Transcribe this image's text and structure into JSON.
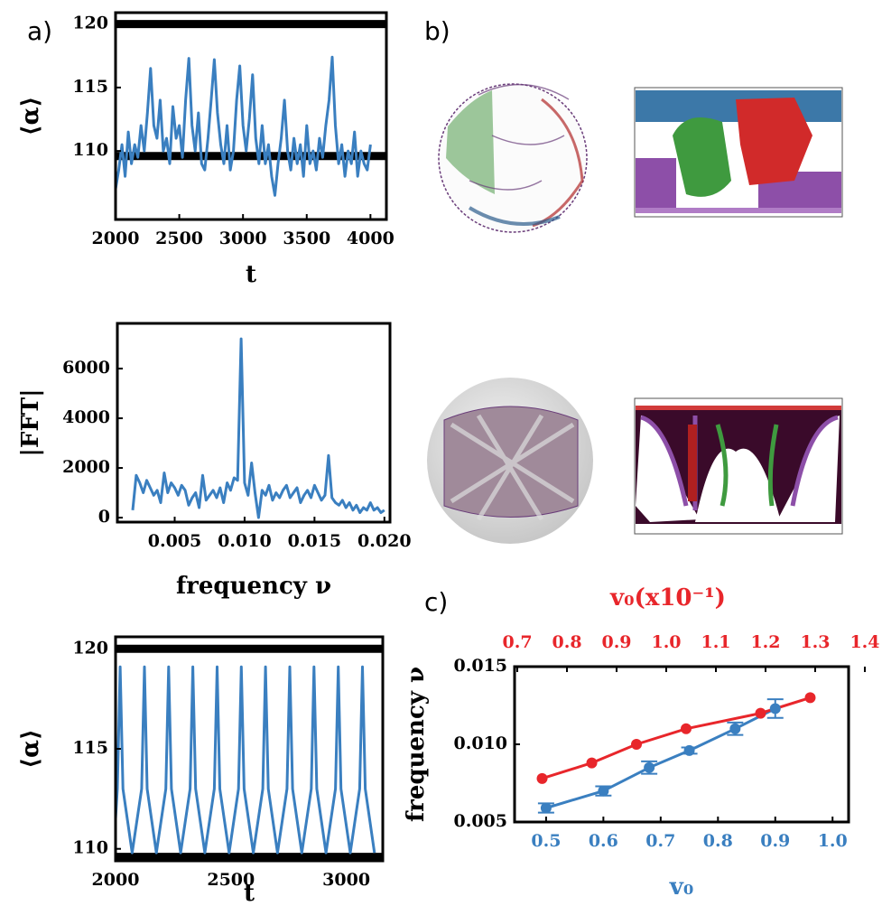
{
  "panel_b": {
    "label": "b)"
  },
  "chart_data": [
    {
      "type": "line",
      "panel_label": "a)",
      "xlabel": "t",
      "ylabel": "⟨α⟩",
      "xlim": [
        2000,
        4125
      ],
      "ylim": [
        104.6,
        120.9
      ],
      "xticks": [
        2000,
        2500,
        3000,
        3500,
        4000
      ],
      "yticks": [
        110,
        115,
        120
      ],
      "hlines": {
        "values": [
          120,
          109.6
        ],
        "color": "#000000"
      },
      "series": [
        {
          "color": "#3a7fc0",
          "x": [
            2000,
            2025,
            2050,
            2075,
            2100,
            2125,
            2150,
            2175,
            2200,
            2225,
            2250,
            2275,
            2300,
            2325,
            2350,
            2375,
            2400,
            2425,
            2450,
            2475,
            2500,
            2525,
            2550,
            2575,
            2600,
            2625,
            2650,
            2675,
            2700,
            2725,
            2750,
            2775,
            2800,
            2825,
            2850,
            2875,
            2900,
            2925,
            2950,
            2975,
            3000,
            3025,
            3050,
            3075,
            3100,
            3125,
            3150,
            3175,
            3200,
            3225,
            3250,
            3275,
            3300,
            3325,
            3350,
            3375,
            3400,
            3425,
            3450,
            3475,
            3500,
            3525,
            3550,
            3575,
            3600,
            3625,
            3650,
            3675,
            3700,
            3725,
            3750,
            3775,
            3800,
            3825,
            3850,
            3875,
            3900,
            3925,
            3950,
            3975,
            4000
          ],
          "values": [
            107,
            108.5,
            110.5,
            108,
            111.5,
            109,
            110.5,
            109.5,
            112,
            110,
            113,
            116.5,
            112,
            111,
            114,
            110,
            111,
            109,
            113.5,
            111,
            112,
            109.5,
            114,
            117.3,
            112,
            110,
            113,
            109,
            108.5,
            111,
            114,
            117.2,
            113,
            110.5,
            109,
            112,
            108.5,
            110,
            114,
            116.7,
            112,
            110,
            112.5,
            116,
            111,
            109,
            112,
            109,
            110.5,
            108,
            106.5,
            109,
            111,
            114,
            110,
            108.5,
            111,
            109,
            110.5,
            108,
            112,
            109,
            110,
            108.5,
            111,
            109.5,
            112,
            114,
            117.4,
            112,
            109,
            110.5,
            108,
            110,
            109,
            111.5,
            108,
            110,
            109,
            108.5,
            110.5
          ]
        }
      ]
    },
    {
      "type": "line",
      "xlabel": "frequency ν",
      "ylabel": "|FFT|",
      "xlim": [
        0.0009,
        0.0204
      ],
      "ylim": [
        -180,
        7820
      ],
      "xticks": [
        {
          "value": 0.005,
          "label": "0.005"
        },
        {
          "value": 0.01,
          "label": "0.010"
        },
        {
          "value": 0.015,
          "label": "0.015"
        },
        {
          "value": 0.02,
          "label": "0.020"
        }
      ],
      "yticks": [
        0,
        2000,
        4000,
        6000
      ],
      "series": [
        {
          "color": "#3a7fc0",
          "x": [
            0.002,
            0.00225,
            0.0025,
            0.00275,
            0.003,
            0.00325,
            0.0035,
            0.00375,
            0.004,
            0.00425,
            0.0045,
            0.00475,
            0.005,
            0.00525,
            0.0055,
            0.00575,
            0.006,
            0.00625,
            0.0065,
            0.00675,
            0.007,
            0.00725,
            0.0075,
            0.00775,
            0.008,
            0.00825,
            0.0085,
            0.00875,
            0.009,
            0.00925,
            0.0095,
            0.00975,
            0.01,
            0.01025,
            0.0105,
            0.01075,
            0.011,
            0.01125,
            0.0115,
            0.01175,
            0.012,
            0.01225,
            0.0125,
            0.01275,
            0.013,
            0.01325,
            0.0135,
            0.01375,
            0.014,
            0.01425,
            0.0145,
            0.01475,
            0.015,
            0.01525,
            0.0155,
            0.01575,
            0.016,
            0.01625,
            0.0165,
            0.01675,
            0.017,
            0.01725,
            0.0175,
            0.01775,
            0.018,
            0.01825,
            0.0185,
            0.01875,
            0.019,
            0.01925,
            0.0195,
            0.01975,
            0.02
          ],
          "values": [
            300,
            1700,
            1400,
            1000,
            1500,
            1200,
            900,
            1100,
            600,
            1800,
            1000,
            1400,
            1200,
            900,
            1300,
            1100,
            500,
            800,
            1000,
            400,
            1700,
            700,
            900,
            1100,
            800,
            1200,
            600,
            1400,
            1100,
            1600,
            1500,
            7200,
            1400,
            900,
            2200,
            1000,
            0,
            1100,
            900,
            1300,
            700,
            1000,
            800,
            1100,
            1300,
            800,
            1000,
            1200,
            600,
            900,
            1100,
            800,
            1300,
            1000,
            700,
            900,
            2500,
            800,
            600,
            500,
            700,
            400,
            600,
            300,
            500,
            200,
            400,
            300,
            600,
            300,
            400,
            200,
            300
          ]
        }
      ]
    },
    {
      "type": "line",
      "xlabel": "t",
      "ylabel": "⟨α⟩",
      "xlim": [
        2000,
        3158
      ],
      "ylim": [
        109.4,
        120.6
      ],
      "xticks": [
        2000,
        2500,
        3000
      ],
      "yticks": [
        110,
        115,
        120
      ],
      "hlines": {
        "values": [
          120,
          109.6
        ],
        "color": "#000000"
      },
      "series": [
        {
          "color": "#3a7fc0",
          "x": [
            2000,
            2008,
            2020,
            2032,
            2072,
            2113,
            2125,
            2137,
            2177,
            2218,
            2230,
            2242,
            2282,
            2323,
            2335,
            2347,
            2387,
            2428,
            2440,
            2452,
            2492,
            2533,
            2545,
            2557,
            2597,
            2638,
            2650,
            2662,
            2702,
            2743,
            2755,
            2767,
            2807,
            2848,
            2860,
            2872,
            2912,
            2953,
            2965,
            2977,
            3017,
            3058,
            3070,
            3082,
            3122
          ],
          "values": [
            111.5,
            113,
            119.1,
            113,
            109.8,
            113,
            119.1,
            113,
            109.8,
            113,
            119.1,
            113,
            109.8,
            113,
            119.1,
            113,
            109.8,
            113,
            119.1,
            113,
            109.8,
            113,
            119.1,
            113,
            109.8,
            113,
            119.1,
            113,
            109.8,
            113,
            119.1,
            113,
            109.8,
            113,
            119.1,
            113,
            109.8,
            113,
            119.1,
            113,
            109.8,
            113,
            119.1,
            113,
            109.8
          ]
        }
      ]
    },
    {
      "type": "errorline",
      "panel_label": "c)",
      "xlabel": "v₀",
      "x2label": "v₀(x10⁻¹)",
      "ylabel": "frequency ν",
      "xaxis_color": "#3a7fc0",
      "x2axis_color": "#e8262b",
      "xlim": [
        0.445,
        1.028
      ],
      "x2lim": [
        0.6945,
        1.3673
      ],
      "ylim": [
        0.005,
        0.015
      ],
      "xticks": [
        0.5,
        0.6,
        0.7,
        0.8,
        0.9,
        {
          "value": 1.0,
          "label": "1.0"
        }
      ],
      "x2ticks": [
        0.7,
        0.8,
        0.9,
        {
          "value": 1.0,
          "label": "1.0"
        },
        1.1,
        1.2,
        1.3,
        1.4
      ],
      "yticks": [
        {
          "value": 0.005,
          "label": "0.005"
        },
        {
          "value": 0.01,
          "label": "0.010"
        },
        {
          "value": 0.015,
          "label": "0.015"
        }
      ],
      "series": [
        {
          "color": "#3a7fc0",
          "x": [
            0.5,
            0.6,
            0.68,
            0.75,
            0.83,
            0.9
          ],
          "values": [
            0.0059,
            0.007,
            0.0085,
            0.0096,
            0.011,
            0.0123
          ],
          "errors": [
            0.0003,
            0.0003,
            0.0004,
            0.0002,
            0.0004,
            0.0006
          ]
        },
        {
          "color": "#e8262b",
          "axis": "x2",
          "x": [
            0.75,
            0.85,
            0.94,
            1.04,
            1.19,
            1.29
          ],
          "values": [
            0.0078,
            0.0088,
            0.01,
            0.011,
            0.012,
            0.013
          ]
        }
      ]
    }
  ]
}
